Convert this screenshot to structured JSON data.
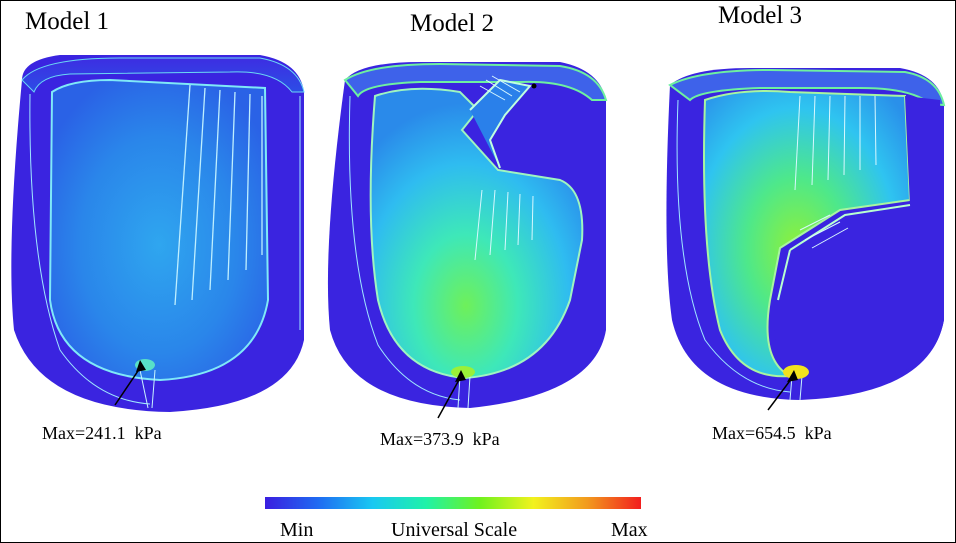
{
  "models": [
    {
      "title": "Model 1",
      "max_label": "Max=241.1  kPa"
    },
    {
      "title": "Model 2",
      "max_label": "Max=373.9  kPa"
    },
    {
      "title": "Model 3",
      "max_label": "Max=654.5  kPa"
    }
  ],
  "colorbar": {
    "min_label": "Min",
    "title": "Universal Scale",
    "max_label": "Max",
    "colors": [
      "#3a1ee0",
      "#1f6cf2",
      "#19c8f2",
      "#1ff2a8",
      "#6ff21e",
      "#f2f21e",
      "#f29a1e",
      "#f21e1e"
    ]
  }
}
